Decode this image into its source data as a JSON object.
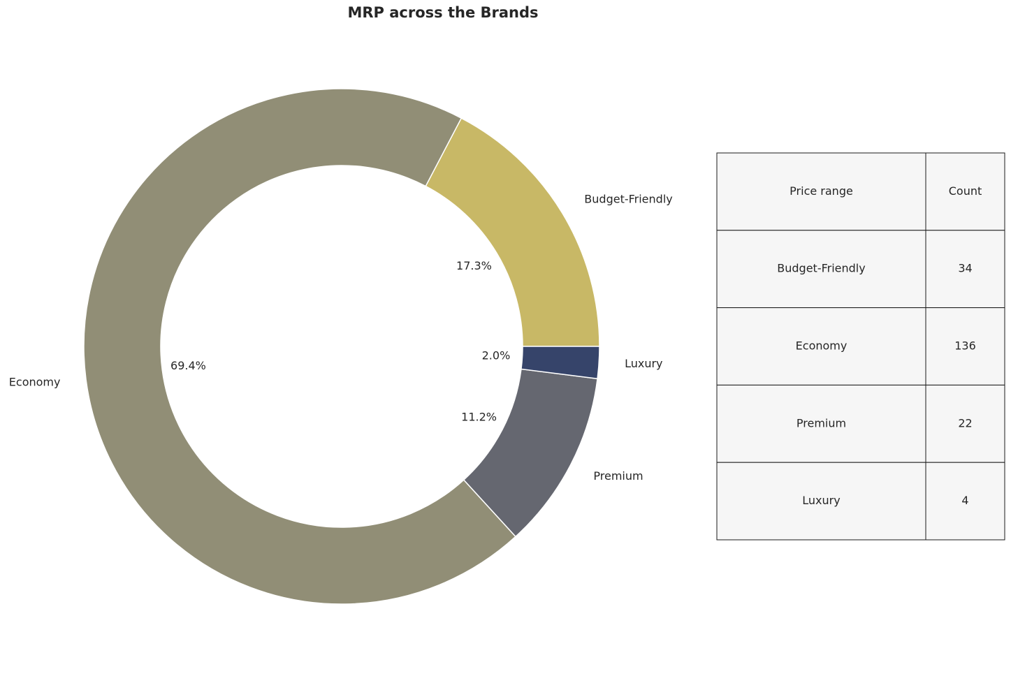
{
  "chart_data": {
    "type": "pie",
    "title": "MRP across the Brands",
    "categories": [
      "Budget-Friendly",
      "Economy",
      "Premium",
      "Luxury"
    ],
    "values": [
      17.3,
      69.4,
      11.2,
      2.0
    ],
    "value_labels": [
      "17.3%",
      "69.4%",
      "11.2%",
      "2.0%"
    ],
    "colors": [
      "#c8b866",
      "#918e76",
      "#656770",
      "#36446a"
    ]
  },
  "table": {
    "header": [
      "Price range",
      "Count"
    ],
    "rows": [
      [
        "Budget-Friendly",
        34
      ],
      [
        "Economy",
        136
      ],
      [
        "Premium",
        22
      ],
      [
        "Luxury",
        4
      ]
    ]
  }
}
